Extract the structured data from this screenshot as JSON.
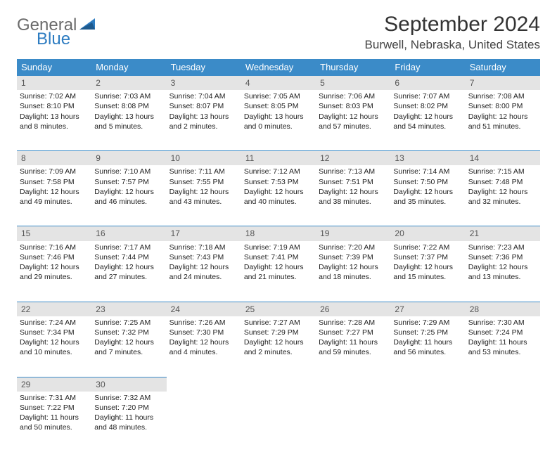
{
  "brand": {
    "word1": "General",
    "word2": "Blue"
  },
  "title": "September 2024",
  "location": "Burwell, Nebraska, United States",
  "colors": {
    "header_bg": "#3b8bc8",
    "header_text": "#ffffff",
    "daynum_bg": "#e4e4e4",
    "daynum_text": "#555555",
    "border": "#3b8bc8",
    "body_text": "#222222",
    "logo_gray": "#6b6b6b",
    "logo_blue": "#2d7cc1",
    "background": "#ffffff"
  },
  "weekdays": [
    "Sunday",
    "Monday",
    "Tuesday",
    "Wednesday",
    "Thursday",
    "Friday",
    "Saturday"
  ],
  "weeks": [
    [
      {
        "n": "1",
        "sr": "Sunrise: 7:02 AM",
        "ss": "Sunset: 8:10 PM",
        "d1": "Daylight: 13 hours",
        "d2": "and 8 minutes."
      },
      {
        "n": "2",
        "sr": "Sunrise: 7:03 AM",
        "ss": "Sunset: 8:08 PM",
        "d1": "Daylight: 13 hours",
        "d2": "and 5 minutes."
      },
      {
        "n": "3",
        "sr": "Sunrise: 7:04 AM",
        "ss": "Sunset: 8:07 PM",
        "d1": "Daylight: 13 hours",
        "d2": "and 2 minutes."
      },
      {
        "n": "4",
        "sr": "Sunrise: 7:05 AM",
        "ss": "Sunset: 8:05 PM",
        "d1": "Daylight: 13 hours",
        "d2": "and 0 minutes."
      },
      {
        "n": "5",
        "sr": "Sunrise: 7:06 AM",
        "ss": "Sunset: 8:03 PM",
        "d1": "Daylight: 12 hours",
        "d2": "and 57 minutes."
      },
      {
        "n": "6",
        "sr": "Sunrise: 7:07 AM",
        "ss": "Sunset: 8:02 PM",
        "d1": "Daylight: 12 hours",
        "d2": "and 54 minutes."
      },
      {
        "n": "7",
        "sr": "Sunrise: 7:08 AM",
        "ss": "Sunset: 8:00 PM",
        "d1": "Daylight: 12 hours",
        "d2": "and 51 minutes."
      }
    ],
    [
      {
        "n": "8",
        "sr": "Sunrise: 7:09 AM",
        "ss": "Sunset: 7:58 PM",
        "d1": "Daylight: 12 hours",
        "d2": "and 49 minutes."
      },
      {
        "n": "9",
        "sr": "Sunrise: 7:10 AM",
        "ss": "Sunset: 7:57 PM",
        "d1": "Daylight: 12 hours",
        "d2": "and 46 minutes."
      },
      {
        "n": "10",
        "sr": "Sunrise: 7:11 AM",
        "ss": "Sunset: 7:55 PM",
        "d1": "Daylight: 12 hours",
        "d2": "and 43 minutes."
      },
      {
        "n": "11",
        "sr": "Sunrise: 7:12 AM",
        "ss": "Sunset: 7:53 PM",
        "d1": "Daylight: 12 hours",
        "d2": "and 40 minutes."
      },
      {
        "n": "12",
        "sr": "Sunrise: 7:13 AM",
        "ss": "Sunset: 7:51 PM",
        "d1": "Daylight: 12 hours",
        "d2": "and 38 minutes."
      },
      {
        "n": "13",
        "sr": "Sunrise: 7:14 AM",
        "ss": "Sunset: 7:50 PM",
        "d1": "Daylight: 12 hours",
        "d2": "and 35 minutes."
      },
      {
        "n": "14",
        "sr": "Sunrise: 7:15 AM",
        "ss": "Sunset: 7:48 PM",
        "d1": "Daylight: 12 hours",
        "d2": "and 32 minutes."
      }
    ],
    [
      {
        "n": "15",
        "sr": "Sunrise: 7:16 AM",
        "ss": "Sunset: 7:46 PM",
        "d1": "Daylight: 12 hours",
        "d2": "and 29 minutes."
      },
      {
        "n": "16",
        "sr": "Sunrise: 7:17 AM",
        "ss": "Sunset: 7:44 PM",
        "d1": "Daylight: 12 hours",
        "d2": "and 27 minutes."
      },
      {
        "n": "17",
        "sr": "Sunrise: 7:18 AM",
        "ss": "Sunset: 7:43 PM",
        "d1": "Daylight: 12 hours",
        "d2": "and 24 minutes."
      },
      {
        "n": "18",
        "sr": "Sunrise: 7:19 AM",
        "ss": "Sunset: 7:41 PM",
        "d1": "Daylight: 12 hours",
        "d2": "and 21 minutes."
      },
      {
        "n": "19",
        "sr": "Sunrise: 7:20 AM",
        "ss": "Sunset: 7:39 PM",
        "d1": "Daylight: 12 hours",
        "d2": "and 18 minutes."
      },
      {
        "n": "20",
        "sr": "Sunrise: 7:22 AM",
        "ss": "Sunset: 7:37 PM",
        "d1": "Daylight: 12 hours",
        "d2": "and 15 minutes."
      },
      {
        "n": "21",
        "sr": "Sunrise: 7:23 AM",
        "ss": "Sunset: 7:36 PM",
        "d1": "Daylight: 12 hours",
        "d2": "and 13 minutes."
      }
    ],
    [
      {
        "n": "22",
        "sr": "Sunrise: 7:24 AM",
        "ss": "Sunset: 7:34 PM",
        "d1": "Daylight: 12 hours",
        "d2": "and 10 minutes."
      },
      {
        "n": "23",
        "sr": "Sunrise: 7:25 AM",
        "ss": "Sunset: 7:32 PM",
        "d1": "Daylight: 12 hours",
        "d2": "and 7 minutes."
      },
      {
        "n": "24",
        "sr": "Sunrise: 7:26 AM",
        "ss": "Sunset: 7:30 PM",
        "d1": "Daylight: 12 hours",
        "d2": "and 4 minutes."
      },
      {
        "n": "25",
        "sr": "Sunrise: 7:27 AM",
        "ss": "Sunset: 7:29 PM",
        "d1": "Daylight: 12 hours",
        "d2": "and 2 minutes."
      },
      {
        "n": "26",
        "sr": "Sunrise: 7:28 AM",
        "ss": "Sunset: 7:27 PM",
        "d1": "Daylight: 11 hours",
        "d2": "and 59 minutes."
      },
      {
        "n": "27",
        "sr": "Sunrise: 7:29 AM",
        "ss": "Sunset: 7:25 PM",
        "d1": "Daylight: 11 hours",
        "d2": "and 56 minutes."
      },
      {
        "n": "28",
        "sr": "Sunrise: 7:30 AM",
        "ss": "Sunset: 7:24 PM",
        "d1": "Daylight: 11 hours",
        "d2": "and 53 minutes."
      }
    ],
    [
      {
        "n": "29",
        "sr": "Sunrise: 7:31 AM",
        "ss": "Sunset: 7:22 PM",
        "d1": "Daylight: 11 hours",
        "d2": "and 50 minutes."
      },
      {
        "n": "30",
        "sr": "Sunrise: 7:32 AM",
        "ss": "Sunset: 7:20 PM",
        "d1": "Daylight: 11 hours",
        "d2": "and 48 minutes."
      },
      null,
      null,
      null,
      null,
      null
    ]
  ]
}
